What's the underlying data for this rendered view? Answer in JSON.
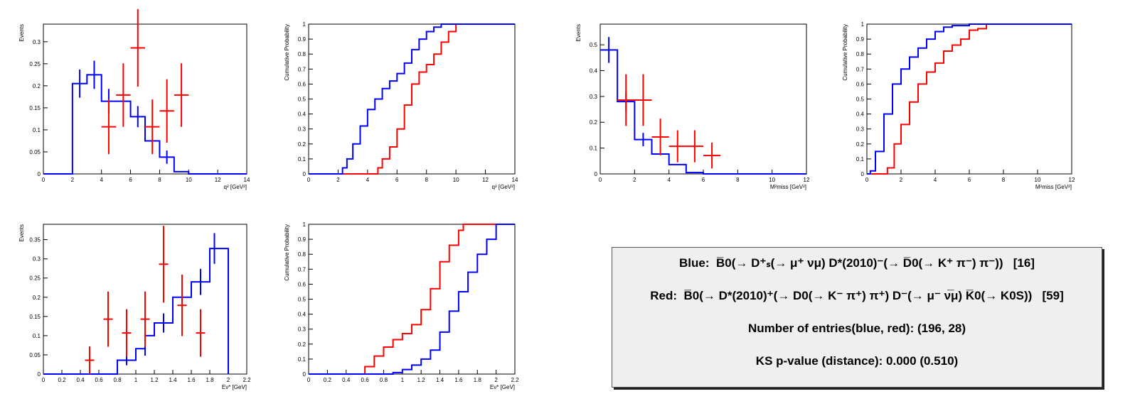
{
  "colors": {
    "blue": "#0000ff",
    "red": "#ff0000",
    "axis": "#000000"
  },
  "chart_data": [
    {
      "type": "histogram",
      "xlabel": "q² [GeV²]",
      "ylabel": "Events",
      "xlim": [
        0,
        14
      ],
      "ylim": [
        0,
        0.34
      ],
      "xticks": [
        "0",
        "2",
        "4",
        "6",
        "8",
        "10",
        "12",
        "14"
      ],
      "yticks": [
        "0",
        "0.05",
        "0.1",
        "0.15",
        "0.2",
        "0.25",
        "0.3"
      ],
      "blue_step": {
        "edges": [
          0,
          1,
          2,
          3,
          4,
          5,
          6,
          7,
          8,
          9,
          10,
          11,
          12,
          13,
          14
        ],
        "values": [
          0,
          0,
          0.205,
          0.225,
          0.165,
          0.165,
          0.13,
          0.075,
          0.038,
          0.005,
          0,
          0,
          0,
          0
        ]
      },
      "blue_err": [
        [
          2.5,
          0.205,
          0.032
        ],
        [
          3.5,
          0.225,
          0.032
        ],
        [
          4.5,
          0.165,
          0.028
        ],
        [
          6.5,
          0.13,
          0.024
        ],
        [
          8.5,
          0.038,
          0.015
        ]
      ],
      "red_points": [
        [
          4.5,
          0.107,
          0.062
        ],
        [
          5.5,
          0.179,
          0.072
        ],
        [
          6.5,
          0.286,
          0.088
        ],
        [
          7.5,
          0.107,
          0.062
        ],
        [
          8.5,
          0.143,
          0.072
        ],
        [
          9.5,
          0.179,
          0.072
        ]
      ]
    },
    {
      "type": "cdf",
      "xlabel": "q² [GeV²]",
      "ylabel": "Cumulative Probability",
      "xlim": [
        0,
        14
      ],
      "ylim": [
        0,
        1
      ],
      "xticks": [
        "0",
        "2",
        "4",
        "6",
        "8",
        "10",
        "12",
        "14"
      ],
      "yticks": [
        "0",
        "0.1",
        "0.2",
        "0.3",
        "0.4",
        "0.5",
        "0.6",
        "0.7",
        "0.8",
        "0.9",
        "1"
      ],
      "blue_curve": [
        [
          0,
          0
        ],
        [
          2.1,
          0
        ],
        [
          2.3,
          0.04
        ],
        [
          2.6,
          0.1
        ],
        [
          3.0,
          0.2
        ],
        [
          3.5,
          0.32
        ],
        [
          4.0,
          0.43
        ],
        [
          4.5,
          0.5
        ],
        [
          5.0,
          0.57
        ],
        [
          5.5,
          0.62
        ],
        [
          6.0,
          0.67
        ],
        [
          6.5,
          0.74
        ],
        [
          7.0,
          0.83
        ],
        [
          7.5,
          0.9
        ],
        [
          8.0,
          0.95
        ],
        [
          8.5,
          0.98
        ],
        [
          9.0,
          1.0
        ],
        [
          14,
          1.0
        ]
      ],
      "red_curve": [
        [
          0,
          0
        ],
        [
          4.5,
          0
        ],
        [
          4.7,
          0.04
        ],
        [
          5.0,
          0.1
        ],
        [
          5.5,
          0.18
        ],
        [
          6.0,
          0.3
        ],
        [
          6.5,
          0.46
        ],
        [
          7.0,
          0.6
        ],
        [
          7.5,
          0.68
        ],
        [
          8.0,
          0.73
        ],
        [
          8.5,
          0.8
        ],
        [
          9.0,
          0.88
        ],
        [
          9.5,
          0.95
        ],
        [
          10.0,
          1.0
        ],
        [
          14,
          1.0
        ]
      ]
    },
    {
      "type": "histogram",
      "xlabel": "M²miss [GeV²]",
      "ylabel": "Events",
      "xlim": [
        0,
        12
      ],
      "ylim": [
        0,
        0.58
      ],
      "xticks": [
        "0",
        "2",
        "4",
        "6",
        "8",
        "10",
        "12"
      ],
      "yticks": [
        "0",
        "0.1",
        "0.2",
        "0.3",
        "0.4",
        "0.5"
      ],
      "blue_step": {
        "edges": [
          0,
          1,
          2,
          3,
          4,
          5,
          6,
          7,
          8,
          9,
          10,
          11,
          12
        ],
        "values": [
          0.48,
          0.28,
          0.133,
          0.077,
          0.036,
          0.005,
          0,
          0,
          0,
          0,
          0,
          0
        ]
      },
      "blue_err": [
        [
          0.5,
          0.48,
          0.05
        ],
        [
          1.5,
          0.28,
          0.038
        ],
        [
          2.5,
          0.133,
          0.026
        ]
      ],
      "red_points": [
        [
          1.5,
          0.286,
          0.1
        ],
        [
          2.5,
          0.286,
          0.1
        ],
        [
          3.5,
          0.143,
          0.071
        ],
        [
          4.5,
          0.107,
          0.062
        ],
        [
          5.5,
          0.107,
          0.062
        ],
        [
          6.5,
          0.071,
          0.05
        ]
      ]
    },
    {
      "type": "cdf",
      "xlabel": "M²miss [GeV²]",
      "ylabel": "Cumulative Probability",
      "xlim": [
        0,
        12
      ],
      "ylim": [
        0,
        1
      ],
      "xticks": [
        "0",
        "2",
        "4",
        "6",
        "8",
        "10",
        "12"
      ],
      "yticks": [
        "0",
        "0.1",
        "0.2",
        "0.3",
        "0.4",
        "0.5",
        "0.6",
        "0.7",
        "0.8",
        "0.9",
        "1"
      ],
      "blue_curve": [
        [
          0,
          0
        ],
        [
          0.2,
          0.02
        ],
        [
          0.5,
          0.15
        ],
        [
          1.0,
          0.4
        ],
        [
          1.5,
          0.6
        ],
        [
          2.0,
          0.7
        ],
        [
          2.5,
          0.78
        ],
        [
          3.0,
          0.84
        ],
        [
          3.5,
          0.9
        ],
        [
          4.0,
          0.95
        ],
        [
          4.5,
          0.98
        ],
        [
          5.0,
          0.99
        ],
        [
          6.0,
          1.0
        ],
        [
          12,
          1.0
        ]
      ],
      "red_curve": [
        [
          0,
          0
        ],
        [
          1.0,
          0
        ],
        [
          1.2,
          0.04
        ],
        [
          1.6,
          0.2
        ],
        [
          2.0,
          0.33
        ],
        [
          2.5,
          0.48
        ],
        [
          3.0,
          0.6
        ],
        [
          3.5,
          0.68
        ],
        [
          4.0,
          0.74
        ],
        [
          4.5,
          0.82
        ],
        [
          5.0,
          0.86
        ],
        [
          5.5,
          0.9
        ],
        [
          6.0,
          0.96
        ],
        [
          6.5,
          0.97
        ],
        [
          7.0,
          1.0
        ],
        [
          12,
          1.0
        ]
      ]
    },
    {
      "type": "histogram",
      "xlabel": "Eν* [GeV]",
      "ylabel": "Events",
      "xlim": [
        0,
        2.2
      ],
      "ylim": [
        0,
        0.39
      ],
      "xticks": [
        "0",
        "0.2",
        "0.4",
        "0.6",
        "0.8",
        "1",
        "1.2",
        "1.4",
        "1.6",
        "1.8",
        "2",
        "2.2"
      ],
      "yticks": [
        "0",
        "0.05",
        "0.1",
        "0.15",
        "0.2",
        "0.25",
        "0.3",
        "0.35"
      ],
      "blue_step": {
        "edges": [
          0,
          0.1,
          0.2,
          0.3,
          0.4,
          0.5,
          0.6,
          0.7,
          0.8,
          0.9,
          1.0,
          1.1,
          1.2,
          1.3,
          1.4,
          1.5,
          1.6,
          1.7,
          1.8,
          1.9,
          2.0
        ],
        "values": [
          0,
          0,
          0,
          0,
          0,
          0,
          0,
          0,
          0.036,
          0.036,
          0.066,
          0.1,
          0.133,
          0.133,
          0.2,
          0.2,
          0.24,
          0.24,
          0.327,
          0.327
        ]
      },
      "blue_err": [
        [
          0.9,
          0.036,
          0.013
        ],
        [
          1.1,
          0.066,
          0.018
        ],
        [
          1.3,
          0.133,
          0.025
        ],
        [
          1.5,
          0.2,
          0.03
        ],
        [
          1.7,
          0.24,
          0.034
        ],
        [
          1.85,
          0.327,
          0.04
        ]
      ],
      "red_points": [
        [
          0.5,
          0.036,
          0.036
        ],
        [
          0.7,
          0.143,
          0.072
        ],
        [
          0.9,
          0.107,
          0.062
        ],
        [
          1.1,
          0.143,
          0.072
        ],
        [
          1.3,
          0.286,
          0.1
        ],
        [
          1.5,
          0.179,
          0.08
        ],
        [
          1.7,
          0.107,
          0.062
        ]
      ]
    },
    {
      "type": "cdf",
      "xlabel": "Eν* [GeV]",
      "ylabel": "Cumulative Probability",
      "xlim": [
        0,
        2.2
      ],
      "ylim": [
        0,
        1
      ],
      "xticks": [
        "0",
        "0.2",
        "0.4",
        "0.6",
        "0.8",
        "1",
        "1.2",
        "1.4",
        "1.6",
        "1.8",
        "2",
        "2.2"
      ],
      "yticks": [
        "0",
        "0.1",
        "0.2",
        "0.3",
        "0.4",
        "0.5",
        "0.6",
        "0.7",
        "0.8",
        "0.9",
        "1"
      ],
      "blue_curve": [
        [
          0,
          0
        ],
        [
          0.8,
          0
        ],
        [
          0.9,
          0.01
        ],
        [
          1.0,
          0.03
        ],
        [
          1.1,
          0.06
        ],
        [
          1.2,
          0.1
        ],
        [
          1.3,
          0.16
        ],
        [
          1.4,
          0.28
        ],
        [
          1.5,
          0.42
        ],
        [
          1.6,
          0.55
        ],
        [
          1.7,
          0.68
        ],
        [
          1.8,
          0.8
        ],
        [
          1.9,
          0.9
        ],
        [
          2.0,
          1.0
        ],
        [
          2.2,
          1.0
        ]
      ],
      "red_curve": [
        [
          0,
          0
        ],
        [
          0.55,
          0
        ],
        [
          0.6,
          0.05
        ],
        [
          0.7,
          0.12
        ],
        [
          0.8,
          0.18
        ],
        [
          0.9,
          0.23
        ],
        [
          1.0,
          0.27
        ],
        [
          1.1,
          0.33
        ],
        [
          1.2,
          0.43
        ],
        [
          1.3,
          0.57
        ],
        [
          1.4,
          0.75
        ],
        [
          1.5,
          0.86
        ],
        [
          1.6,
          0.96
        ],
        [
          1.65,
          1.0
        ],
        [
          2.2,
          1.0
        ]
      ]
    }
  ],
  "legend": {
    "blue_label": "Blue:",
    "blue_decay": "B̅0(→ D⁺ₛ(→ μ⁺ νμ) D*(2010)⁻(→ D̅0(→ K⁺ π⁻) π⁻))",
    "blue_count": "[16]",
    "red_label": "Red:",
    "red_decay": "B̅0(→ D*(2010)⁺(→ D0(→ K⁻ π⁺) π⁺) D⁻(→ μ⁻ ν̅μ) K̅0(→ K0S))",
    "red_count": "[59]",
    "entries": "Number of entries(blue, red): (196, 28)",
    "ks": "KS p-value (distance): 0.000 (0.510)"
  }
}
